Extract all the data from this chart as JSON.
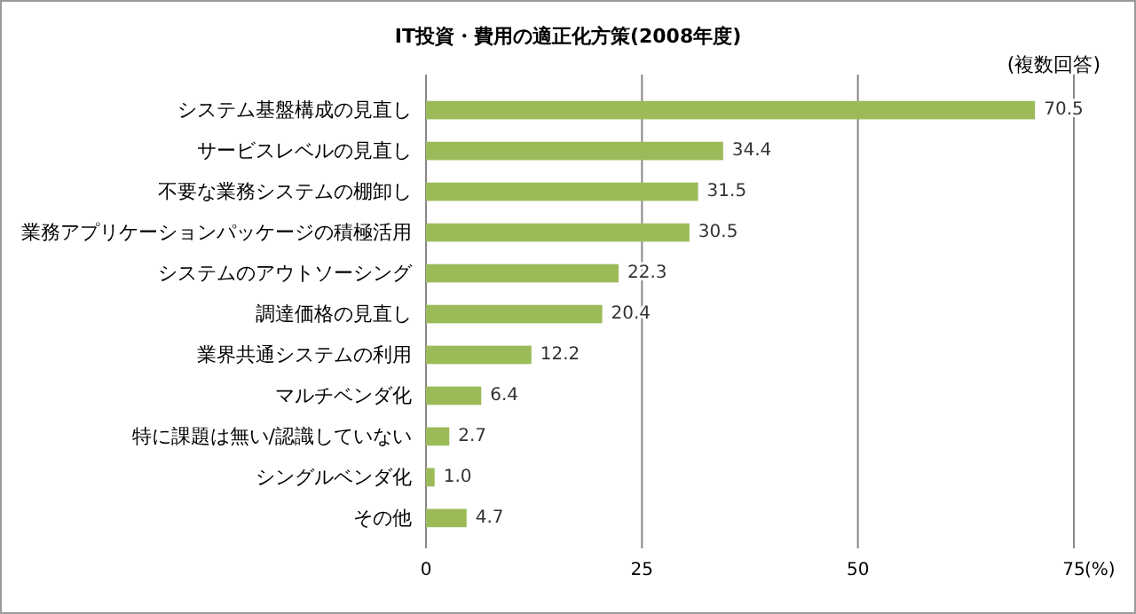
{
  "chart_data": {
    "type": "bar",
    "orientation": "horizontal",
    "title": "IT投資・費用の適正化方策(2008年度)",
    "annotations": [
      "(複数回答)"
    ],
    "xlabel": "(%)",
    "categories": [
      "システム基盤構成の見直し",
      "サービスレベルの見直し",
      "不要な業務システムの棚卸し",
      "業務アプリケーションパッケージの積極活用",
      "システムのアウトソーシング",
      "調達価格の見直し",
      "業界共通システムの利用",
      "マルチベンダ化",
      "特に課題は無い/認識していない",
      "シングルベンダ化",
      "その他"
    ],
    "values": [
      70.5,
      34.4,
      31.5,
      30.5,
      22.3,
      20.4,
      12.2,
      6.4,
      2.7,
      1.0,
      4.7
    ],
    "value_labels": [
      "70.5",
      "34.4",
      "31.5",
      "30.5",
      "22.3",
      "20.4",
      "12.2",
      "6.4",
      "2.7",
      "1.0",
      "4.7"
    ],
    "color": "#9bbb59",
    "xlim": [
      0,
      75
    ],
    "xticks": [
      0,
      25,
      50,
      75
    ],
    "grid": "x"
  }
}
